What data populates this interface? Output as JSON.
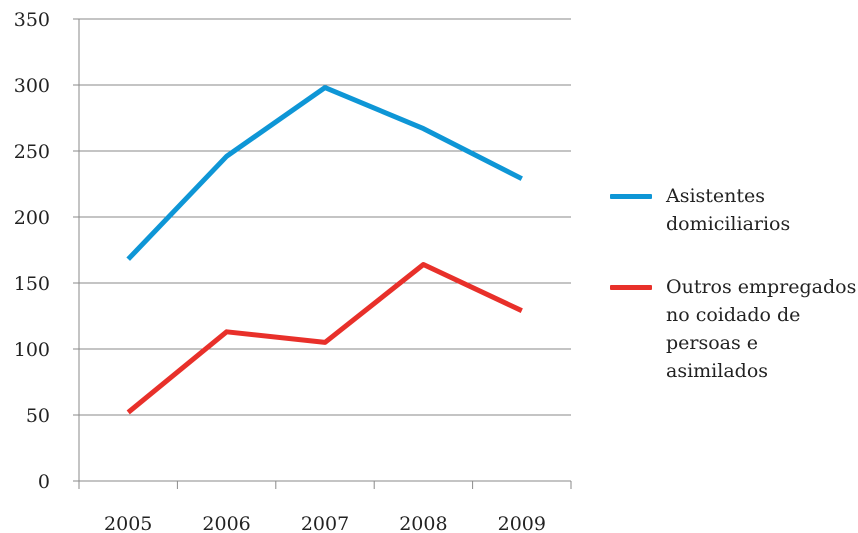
{
  "chart_data": {
    "type": "line",
    "title": "",
    "xlabel": "",
    "ylabel": "",
    "categories": [
      "2005",
      "2006",
      "2007",
      "2008",
      "2009"
    ],
    "ylim": [
      0,
      350
    ],
    "yticks": [
      "0",
      "50",
      "100",
      "150",
      "200",
      "250",
      "300",
      "350"
    ],
    "grid": true,
    "legend_position": "right",
    "series": [
      {
        "name": "Asistentes domiciliarios",
        "values": [
          168,
          246,
          298,
          267,
          229
        ],
        "color": "#0e96d6"
      },
      {
        "name": "Outros empregados no coidado de persoas e asimilados",
        "values": [
          52,
          113,
          105,
          164,
          129
        ],
        "color": "#e8302a"
      }
    ]
  }
}
